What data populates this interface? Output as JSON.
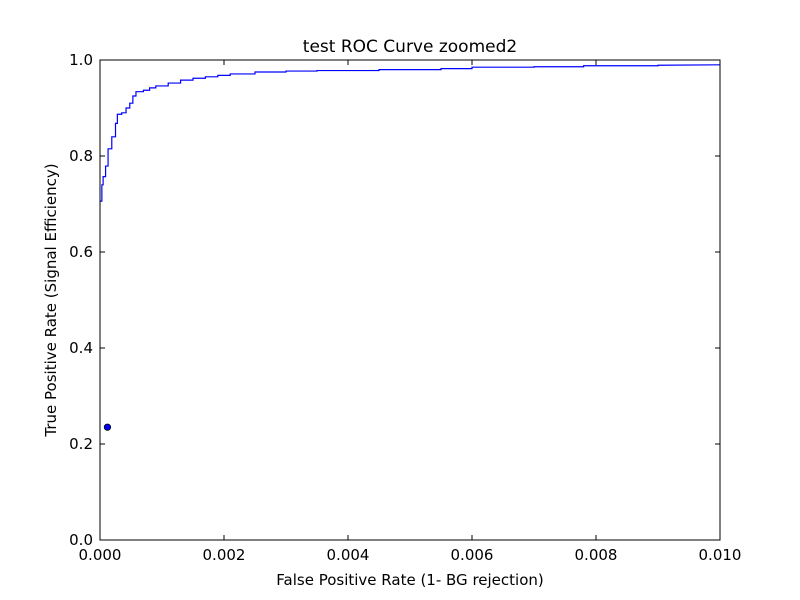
{
  "chart_data": {
    "type": "line",
    "title": "test ROC Curve zoomed2",
    "xlabel": "False Positive Rate (1- BG rejection)",
    "ylabel": "True Positive Rate (Signal Efficiency)",
    "xlim": [
      0.0,
      0.01
    ],
    "ylim": [
      0.0,
      1.0
    ],
    "x_ticks": [
      0.0,
      0.002,
      0.004,
      0.006,
      0.008,
      0.01
    ],
    "x_tick_labels": [
      "0.000",
      "0.002",
      "0.004",
      "0.006",
      "0.008",
      "0.010"
    ],
    "y_ticks": [
      0.0,
      0.2,
      0.4,
      0.6,
      0.8,
      1.0
    ],
    "y_tick_labels": [
      "0.0",
      "0.2",
      "0.4",
      "0.6",
      "0.8",
      "1.0"
    ],
    "grid": false,
    "series": [
      {
        "color": "#0000ff",
        "style": "step-line",
        "points": [
          [
            0.0,
            0.706
          ],
          [
            3e-05,
            0.706
          ],
          [
            3e-05,
            0.74
          ],
          [
            5e-05,
            0.74
          ],
          [
            5e-05,
            0.757
          ],
          [
            9e-05,
            0.757
          ],
          [
            9e-05,
            0.779
          ],
          [
            0.00013,
            0.779
          ],
          [
            0.00013,
            0.815
          ],
          [
            0.00019,
            0.815
          ],
          [
            0.00019,
            0.84
          ],
          [
            0.00025,
            0.84
          ],
          [
            0.00025,
            0.868
          ],
          [
            0.00028,
            0.868
          ],
          [
            0.00028,
            0.887
          ],
          [
            0.00035,
            0.887
          ],
          [
            0.00035,
            0.89
          ],
          [
            0.00042,
            0.89
          ],
          [
            0.00042,
            0.9
          ],
          [
            0.00048,
            0.9
          ],
          [
            0.00048,
            0.91
          ],
          [
            0.00053,
            0.91
          ],
          [
            0.00053,
            0.925
          ],
          [
            0.00058,
            0.925
          ],
          [
            0.00058,
            0.934
          ],
          [
            0.0007,
            0.934
          ],
          [
            0.0007,
            0.937
          ],
          [
            0.0008,
            0.937
          ],
          [
            0.0008,
            0.942
          ],
          [
            0.0009,
            0.942
          ],
          [
            0.0009,
            0.946
          ],
          [
            0.0011,
            0.946
          ],
          [
            0.0011,
            0.952
          ],
          [
            0.0013,
            0.952
          ],
          [
            0.0013,
            0.958
          ],
          [
            0.0015,
            0.958
          ],
          [
            0.0015,
            0.962
          ],
          [
            0.0017,
            0.962
          ],
          [
            0.0017,
            0.965
          ],
          [
            0.0019,
            0.965
          ],
          [
            0.0019,
            0.968
          ],
          [
            0.0021,
            0.968
          ],
          [
            0.0021,
            0.971
          ],
          [
            0.0025,
            0.971
          ],
          [
            0.0025,
            0.975
          ],
          [
            0.003,
            0.975
          ],
          [
            0.003,
            0.977
          ],
          [
            0.0035,
            0.977
          ],
          [
            0.0035,
            0.978
          ],
          [
            0.0045,
            0.978
          ],
          [
            0.0045,
            0.98
          ],
          [
            0.0055,
            0.98
          ],
          [
            0.0055,
            0.982
          ],
          [
            0.006,
            0.982
          ],
          [
            0.006,
            0.985
          ],
          [
            0.007,
            0.985
          ],
          [
            0.007,
            0.986
          ],
          [
            0.0078,
            0.986
          ],
          [
            0.0078,
            0.988
          ],
          [
            0.009,
            0.988
          ],
          [
            0.009,
            0.989
          ],
          [
            0.01,
            0.99
          ]
        ]
      },
      {
        "color": "#0000ff",
        "style": "marker",
        "points": [
          [
            0.00012,
            0.235
          ]
        ]
      }
    ]
  }
}
